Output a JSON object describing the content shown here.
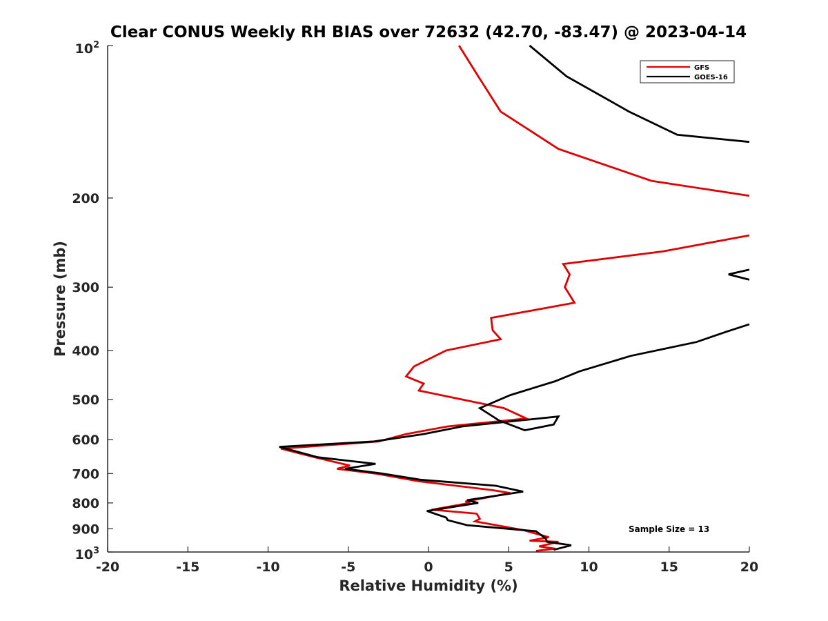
{
  "chart_data": {
    "type": "line",
    "title": "Clear CONUS Weekly RH BIAS over 72632 (42.70, -83.47) @ 2023-04-14",
    "xlabel": "Relative Humidity (%)",
    "ylabel": "Pressure (mb)",
    "xlim": [
      -20,
      20
    ],
    "ylim": [
      1000,
      100
    ],
    "y_scale": "log",
    "x_ticks": [
      -20,
      -15,
      -10,
      -5,
      0,
      5,
      10,
      15,
      20
    ],
    "x_tick_labels": [
      "-20",
      "-15",
      "-10",
      "-5",
      "0",
      "5",
      "10",
      "15",
      "20"
    ],
    "y_ticks": [
      100,
      200,
      300,
      400,
      500,
      600,
      700,
      800,
      900,
      1000
    ],
    "y_tick_labels": [
      "",
      "200",
      "300",
      "400",
      "500",
      "600",
      "700",
      "800",
      "900",
      ""
    ],
    "y_tick_base": "10",
    "y_tick_exp_top": "2",
    "y_tick_exp_bottom": "3",
    "grid": false,
    "legend": {
      "position": "top-right",
      "entries": [
        "GFS",
        "GOES-16"
      ]
    },
    "annotation": "Sample Size = 13",
    "series": [
      {
        "name": "GFS",
        "color": "#e00000",
        "points": [
          [
            1.9,
            100
          ],
          [
            3.1,
            115
          ],
          [
            4.5,
            135
          ],
          [
            8.1,
            160
          ],
          [
            13.9,
            185
          ],
          [
            20.0,
            198
          ],
          [
            null,
            null
          ],
          [
            20.0,
            237
          ],
          [
            14.6,
            255
          ],
          [
            8.4,
            270
          ],
          [
            8.8,
            283
          ],
          [
            8.5,
            300
          ],
          [
            9.1,
            322
          ],
          [
            3.9,
            345
          ],
          [
            4.0,
            365
          ],
          [
            4.5,
            380
          ],
          [
            1.1,
            400
          ],
          [
            -0.9,
            430
          ],
          [
            -1.4,
            450
          ],
          [
            -0.3,
            465
          ],
          [
            -0.6,
            480
          ],
          [
            4.7,
            520
          ],
          [
            6.1,
            545
          ],
          [
            1.2,
            565
          ],
          [
            -1.4,
            585
          ],
          [
            -3.1,
            605
          ],
          [
            -9.2,
            625
          ],
          [
            -7.1,
            650
          ],
          [
            -4.9,
            675
          ],
          [
            -5.7,
            685
          ],
          [
            -3.3,
            700
          ],
          [
            -0.6,
            725
          ],
          [
            4.0,
            755
          ],
          [
            5.1,
            765
          ],
          [
            2.3,
            795
          ],
          [
            2.6,
            800
          ],
          [
            0.2,
            825
          ],
          [
            3.0,
            840
          ],
          [
            3.2,
            860
          ],
          [
            2.9,
            870
          ],
          [
            5.9,
            905
          ],
          [
            7.5,
            935
          ],
          [
            6.3,
            950
          ],
          [
            8.1,
            955
          ],
          [
            6.9,
            975
          ],
          [
            7.9,
            985
          ],
          [
            6.7,
            995
          ]
        ]
      },
      {
        "name": "GOES-16",
        "color": "#000000",
        "points": [
          [
            6.3,
            100
          ],
          [
            8.6,
            115
          ],
          [
            12.5,
            135
          ],
          [
            15.5,
            150
          ],
          [
            20.0,
            155
          ],
          [
            null,
            null
          ],
          [
            20.0,
            277
          ],
          [
            18.7,
            283
          ],
          [
            20.0,
            290
          ],
          [
            null,
            null
          ],
          [
            20.0,
            355
          ],
          [
            18.5,
            368
          ],
          [
            16.7,
            385
          ],
          [
            12.6,
            410
          ],
          [
            9.4,
            440
          ],
          [
            7.9,
            460
          ],
          [
            5.1,
            490
          ],
          [
            3.2,
            520
          ],
          [
            4.4,
            550
          ],
          [
            6.0,
            575
          ],
          [
            7.8,
            560
          ],
          [
            8.1,
            540
          ],
          [
            2.1,
            565
          ],
          [
            -0.3,
            585
          ],
          [
            -3.4,
            605
          ],
          [
            -9.3,
            620
          ],
          [
            -6.9,
            650
          ],
          [
            -3.3,
            670
          ],
          [
            -5.2,
            685
          ],
          [
            -2.9,
            700
          ],
          [
            -0.5,
            720
          ],
          [
            4.2,
            740
          ],
          [
            5.9,
            760
          ],
          [
            2.4,
            790
          ],
          [
            3.1,
            800
          ],
          [
            -0.1,
            830
          ],
          [
            1.1,
            855
          ],
          [
            1.2,
            865
          ],
          [
            2.4,
            885
          ],
          [
            6.7,
            910
          ],
          [
            7.3,
            940
          ],
          [
            7.4,
            955
          ],
          [
            8.9,
            970
          ],
          [
            7.8,
            990
          ]
        ]
      }
    ]
  }
}
